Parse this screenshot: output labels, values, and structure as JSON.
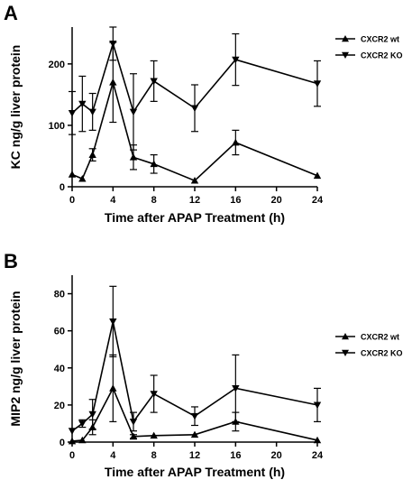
{
  "chart_data": [
    {
      "type": "line",
      "panel_label": "A",
      "xlabel": "Time after APAP Treatment (h)",
      "ylabel": "KC ng/g liver protein",
      "xlim": [
        0,
        24
      ],
      "ylim": [
        0,
        260
      ],
      "xticks": [
        0,
        4,
        8,
        12,
        16,
        20,
        24
      ],
      "yticks": [
        0,
        100,
        200
      ],
      "legend_position": "top-right",
      "series": [
        {
          "name": "CXCR2 wt",
          "marker": "triangle-up",
          "x": [
            0,
            1,
            2,
            4,
            6,
            8,
            12,
            16,
            24
          ],
          "y": [
            20,
            13,
            52,
            170,
            48,
            37,
            10,
            72,
            18
          ],
          "err": [
            0,
            0,
            10,
            65,
            20,
            15,
            0,
            20,
            0
          ]
        },
        {
          "name": "CXCR2 KO",
          "marker": "triangle-down",
          "x": [
            0,
            1,
            2,
            4,
            6,
            8,
            12,
            16,
            24
          ],
          "y": [
            120,
            135,
            122,
            233,
            122,
            172,
            128,
            207,
            168
          ],
          "err": [
            35,
            45,
            30,
            27,
            62,
            33,
            38,
            42,
            37
          ]
        }
      ]
    },
    {
      "type": "line",
      "panel_label": "B",
      "xlabel": "Time after APAP Treatment (h)",
      "ylabel": "MIP2 ng/g liver protein",
      "xlim": [
        0,
        24
      ],
      "ylim": [
        0,
        90
      ],
      "xticks": [
        0,
        4,
        8,
        12,
        16,
        20,
        24
      ],
      "yticks": [
        0,
        20,
        40,
        60,
        80
      ],
      "legend_position": "middle-right",
      "series": [
        {
          "name": "CXCR2 wt",
          "marker": "triangle-up",
          "x": [
            0,
            1,
            2,
            4,
            6,
            8,
            12,
            16,
            24
          ],
          "y": [
            0.5,
            1,
            8,
            29,
            3,
            3.5,
            4,
            11,
            1
          ],
          "err": [
            0,
            0,
            4,
            18,
            1,
            0,
            0,
            5,
            0
          ]
        },
        {
          "name": "CXCR2 KO",
          "marker": "triangle-down",
          "x": [
            0,
            1,
            2,
            4,
            6,
            8,
            12,
            16,
            24
          ],
          "y": [
            6,
            10,
            15,
            65,
            11,
            26,
            14,
            29,
            20
          ],
          "err": [
            0,
            2,
            8,
            19,
            5,
            10,
            5,
            18,
            9
          ]
        }
      ]
    }
  ]
}
